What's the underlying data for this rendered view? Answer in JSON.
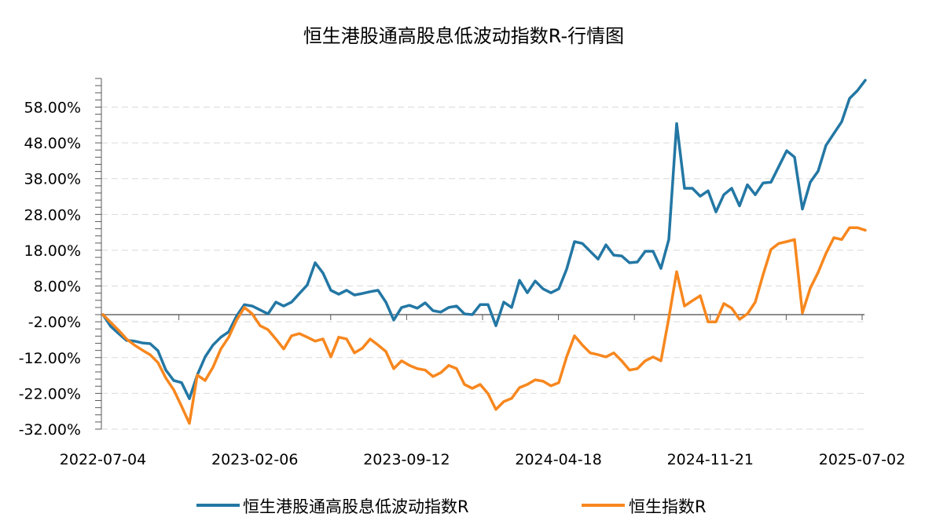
{
  "chart_data": {
    "type": "line",
    "title": "恒生港股通高股息低波动指数R-行情图",
    "xlabel": "",
    "ylabel": "",
    "x_start": "2022-07-04",
    "x_end": "2025-07-02",
    "x_sampling": "evenly spaced between x_start and x_end",
    "xtick_labels": [
      "2022-07-04",
      "2023-02-06",
      "2023-09-12",
      "2024-04-18",
      "2024-11-21",
      "2025-07-02"
    ],
    "ytick_values": [
      58,
      48,
      38,
      28,
      18,
      8,
      -2,
      -12,
      -22,
      -32
    ],
    "ytick_labels": [
      "58.00%",
      "48.00%",
      "38.00%",
      "28.00%",
      "18.00%",
      "8.00%",
      "-2.00%",
      "-12.00%",
      "-22.00%",
      "-32.00%"
    ],
    "ylim": [
      -32,
      66
    ],
    "grid": "horizontal dashed",
    "legend_position": "bottom",
    "series": [
      {
        "name": "恒生港股通高股息低波动指数R",
        "color": "#2377A4",
        "values": [
          0.0,
          -3.3,
          -5.3,
          -7.2,
          -7.4,
          -7.9,
          -8.1,
          -10.1,
          -15.5,
          -18.4,
          -19.0,
          -23.5,
          -16.9,
          -11.8,
          -8.5,
          -6.3,
          -4.8,
          -0.4,
          2.8,
          2.4,
          1.3,
          0.2,
          3.5,
          2.4,
          3.5,
          5.9,
          8.3,
          14.5,
          11.6,
          6.8,
          5.7,
          6.8,
          5.5,
          5.9,
          6.4,
          6.8,
          3.5,
          -1.5,
          2.0,
          2.6,
          1.8,
          3.3,
          1.1,
          0.7,
          2.0,
          2.4,
          0.2,
          0.0,
          2.8,
          2.8,
          -3.1,
          3.5,
          2.0,
          9.6,
          6.1,
          9.4,
          7.2,
          6.1,
          7.2,
          12.7,
          20.4,
          19.9,
          17.7,
          15.5,
          19.5,
          16.6,
          16.4,
          14.5,
          14.7,
          17.7,
          17.7,
          12.9,
          21.0,
          53.4,
          35.3,
          35.3,
          33.1,
          34.6,
          28.7,
          33.5,
          35.3,
          30.4,
          36.3,
          33.5,
          36.8,
          37.0,
          41.4,
          45.8,
          44.0,
          29.5,
          37.0,
          40.1,
          47.3,
          50.6,
          53.9,
          60.4,
          62.6,
          65.5
        ]
      },
      {
        "name": "恒生指数R",
        "color": "#F7871E",
        "values": [
          0.0,
          -2.2,
          -4.4,
          -6.8,
          -8.5,
          -9.9,
          -11.2,
          -13.4,
          -17.7,
          -21.0,
          -25.6,
          -30.4,
          -16.9,
          -18.4,
          -14.7,
          -9.6,
          -6.3,
          -1.5,
          2.0,
          0.2,
          -3.1,
          -4.2,
          -6.8,
          -9.6,
          -5.9,
          -5.3,
          -6.3,
          -7.4,
          -6.8,
          -11.8,
          -6.3,
          -6.8,
          -10.7,
          -9.4,
          -6.8,
          -8.5,
          -10.3,
          -15.1,
          -12.9,
          -14.2,
          -15.1,
          -15.5,
          -17.3,
          -16.2,
          -14.2,
          -15.1,
          -19.5,
          -20.6,
          -19.5,
          -22.1,
          -26.5,
          -24.3,
          -23.4,
          -20.4,
          -19.5,
          -18.2,
          -18.6,
          -19.9,
          -19.0,
          -11.8,
          -5.9,
          -8.5,
          -10.7,
          -11.2,
          -11.8,
          -10.7,
          -12.9,
          -15.5,
          -15.1,
          -12.9,
          -11.8,
          -12.9,
          -1.0,
          12.0,
          2.4,
          3.9,
          5.3,
          -2.0,
          -2.0,
          3.1,
          1.8,
          -1.3,
          0.2,
          3.5,
          11.2,
          18.2,
          19.9,
          20.4,
          21.0,
          0.5,
          7.4,
          11.8,
          17.1,
          21.5,
          21.0,
          24.3,
          24.3,
          23.6
        ]
      }
    ]
  }
}
